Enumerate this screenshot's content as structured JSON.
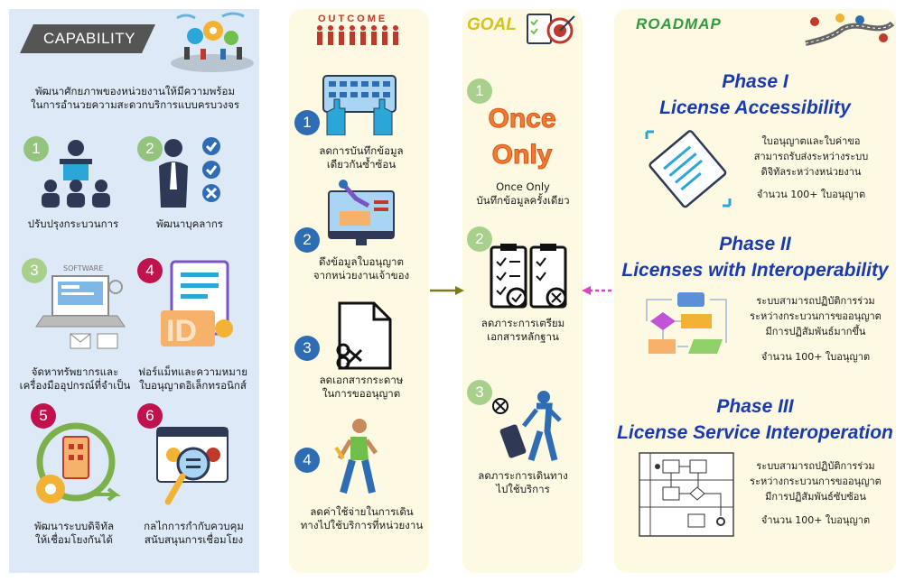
{
  "capability": {
    "title": "CAPABILITY",
    "intro_line1": "พัฒนาศักยภาพของหน่วยงานให้มีความพร้อม",
    "intro_line2": "ในการอำนวยความสะดวกบริการแบบครบวงจร",
    "items": [
      {
        "num": "1",
        "label1": "ปรับปรุงกระบวนการ",
        "label2": ""
      },
      {
        "num": "2",
        "label1": "พัฒนาบุคลากร",
        "label2": ""
      },
      {
        "num": "3",
        "label1": "จัดหาทรัพยากรและ",
        "label2": "เครื่องมืออุปกรณ์ที่จำเป็น"
      },
      {
        "num": "4",
        "label1": "ฟอร์แม็ทและความหมาย",
        "label2": "ใบอนุญาตอิเล็กทรอนิกส์"
      },
      {
        "num": "5",
        "label1": "พัฒนาระบบดิจิทัล",
        "label2": "ให้เชื่อมโยงกันได้"
      },
      {
        "num": "6",
        "label1": "กลไกการกำกับควบคุม",
        "label2": "สนับสนุนการเชื่อมโยง"
      }
    ],
    "software_label": "SOFTWARE"
  },
  "outcome": {
    "title": "OUTCOME",
    "items": [
      {
        "num": "1",
        "label1": "ลดการบันทึกข้อมูล",
        "label2": "เดียวกันซ้ำซ้อน"
      },
      {
        "num": "2",
        "label1": "ดึงข้อมูลใบอนุญาต",
        "label2": "จากหน่วยงานเจ้าของ"
      },
      {
        "num": "3",
        "label1": "ลดเอกสารกระดาษ",
        "label2": "ในการขออนุญาต"
      },
      {
        "num": "4",
        "label1": "ลดค่าใช้จ่ายในการเดิน",
        "label2": "ทางไปใช้บริการที่หน่วยงาน"
      }
    ]
  },
  "goal": {
    "title": "GOAL",
    "once_line1": "Once",
    "once_line2": "Only",
    "items": [
      {
        "num": "1",
        "label1": "Once Only",
        "label2": "บันทึกข้อมูลครั้งเดียว"
      },
      {
        "num": "2",
        "label1": "ลดภาระการเตรียม",
        "label2": "เอกสารหลักฐาน"
      },
      {
        "num": "3",
        "label1": "ลดภาระการเดินทาง",
        "label2": "ไปใช้บริการ"
      }
    ]
  },
  "roadmap": {
    "title": "ROADMAP",
    "phases": [
      {
        "title1": "Phase I",
        "title2": "License Accessibility",
        "desc": [
          "ใบอนุญาตและใบค่าขอ",
          "สามารถรับส่งระหว่างระบบ",
          "ดิจิทัลระหว่างหน่วยงาน"
        ],
        "count": "จำนวน 100+ ใบอนุญาต"
      },
      {
        "title1": "Phase II",
        "title2": "Licenses with Interoperability",
        "desc": [
          "ระบบสามารถปฏิบัติการร่วม",
          "ระหว่างกระบวนการขออนุญาต",
          "มีการปฏิสัมพันธ์มากขึ้น"
        ],
        "count": "จำนวน 100+ ใบอนุญาต"
      },
      {
        "title1": "Phase III",
        "title2": "License Service Interoperation",
        "desc": [
          "ระบบสามารถปฏิบัติการร่วม",
          "ระหว่างกระบวนการขออนุญาต",
          "มีการปฏิสัมพันธ์ซับซ้อน"
        ],
        "count": "จำนวน 100+ ใบอนุญาต"
      }
    ]
  },
  "colors": {
    "capability_bg": "#dde9f7",
    "panel_bg": "#fdf9e3",
    "phase_title": "#1a3bb0",
    "goal_title": "#d6c31a",
    "roadmap_title": "#2e9c3c",
    "once_only": "#f27b33"
  }
}
